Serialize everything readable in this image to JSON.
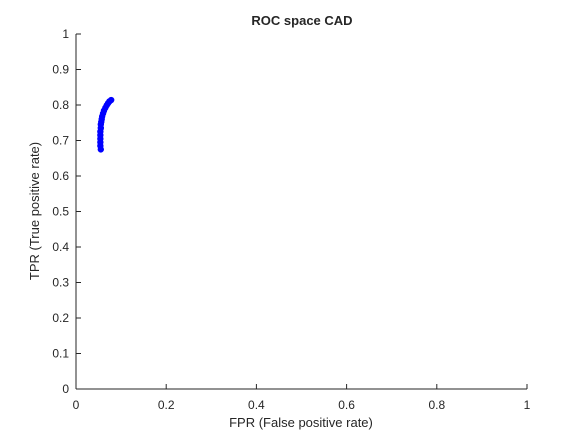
{
  "chart_data": {
    "type": "scatter",
    "title": "ROC space CAD",
    "xlabel": "FPR (False positive rate)",
    "ylabel": "TPR (True positive rate)",
    "xlim": [
      0,
      1
    ],
    "ylim": [
      0,
      1
    ],
    "xticks": [
      0,
      0.2,
      0.4,
      0.6,
      0.8,
      1
    ],
    "yticks": [
      0,
      0.1,
      0.2,
      0.3,
      0.4,
      0.5,
      0.6,
      0.7,
      0.8,
      0.9,
      1
    ],
    "xtick_labels": [
      "0",
      "0.2",
      "0.4",
      "0.6",
      "0.8",
      "1"
    ],
    "ytick_labels": [
      "0",
      "0.1",
      "0.2",
      "0.3",
      "0.4",
      "0.5",
      "0.6",
      "0.7",
      "0.8",
      "0.9",
      "1"
    ],
    "grid": false,
    "series": [
      {
        "color": "#0000ff",
        "marker": "circle",
        "points": [
          {
            "x": 0.055,
            "y": 0.675
          },
          {
            "x": 0.054,
            "y": 0.685
          },
          {
            "x": 0.054,
            "y": 0.695
          },
          {
            "x": 0.054,
            "y": 0.705
          },
          {
            "x": 0.054,
            "y": 0.715
          },
          {
            "x": 0.054,
            "y": 0.725
          },
          {
            "x": 0.055,
            "y": 0.735
          },
          {
            "x": 0.055,
            "y": 0.745
          },
          {
            "x": 0.056,
            "y": 0.752
          },
          {
            "x": 0.057,
            "y": 0.76
          },
          {
            "x": 0.058,
            "y": 0.768
          },
          {
            "x": 0.06,
            "y": 0.776
          },
          {
            "x": 0.062,
            "y": 0.784
          },
          {
            "x": 0.065,
            "y": 0.792
          },
          {
            "x": 0.068,
            "y": 0.799
          },
          {
            "x": 0.071,
            "y": 0.805
          },
          {
            "x": 0.074,
            "y": 0.81
          },
          {
            "x": 0.078,
            "y": 0.814
          }
        ]
      }
    ],
    "colors": {
      "axis": "#262626",
      "marker": "#0000ff"
    }
  }
}
